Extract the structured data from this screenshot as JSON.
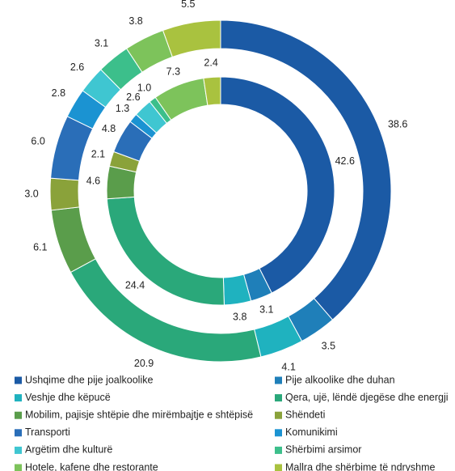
{
  "chart_data": {
    "type": "donut",
    "categories": [
      "Ushqime dhe pije joalkoolike",
      "Pije alkoolike dhe duhan",
      "Veshje dhe këpucë",
      "Qera, ujë, lëndë djegëse dhe energji",
      "Mobilim, pajisje shtëpie dhe mirëmbajtje e shtëpisë",
      "Shëndeti",
      "Transporti",
      "Komunikimi",
      "Argëtim dhe kulturë",
      "Shërbimi arsimor",
      "Hotele, kafene dhe restorante",
      "Mallra dhe shërbime të ndryshme"
    ],
    "colors": [
      "#1b5aa5",
      "#1f7fb9",
      "#1fb2bf",
      "#2aa87a",
      "#5a9d4b",
      "#8aa23a",
      "#2a6eb8",
      "#1b93d2",
      "#3fc6d1",
      "#3cbf8b",
      "#7dc35b",
      "#a9c23f"
    ],
    "series": [
      {
        "values": [
          38.6,
          3.5,
          4.1,
          20.9,
          6.1,
          3.0,
          6.0,
          2.8,
          2.6,
          3.1,
          3.8,
          5.5
        ],
        "value_labels": [
          "38.6",
          "3.5",
          "4.1",
          "20.9",
          "6.1",
          "3.0",
          "6.0",
          "2.8",
          "2.6",
          "3.1",
          "3.8",
          "5.5"
        ]
      },
      {
        "values": [
          42.6,
          3.1,
          3.8,
          24.4,
          4.6,
          2.1,
          4.8,
          1.3,
          2.6,
          1.0,
          7.3,
          2.4
        ],
        "value_labels": [
          "42.6",
          "3.1",
          "3.8",
          "24.4",
          "4.6",
          "2.1",
          "4.8",
          "1.3",
          "2.6",
          "1.0",
          "7.3",
          "2.4"
        ]
      }
    ],
    "legend": "bottom"
  }
}
